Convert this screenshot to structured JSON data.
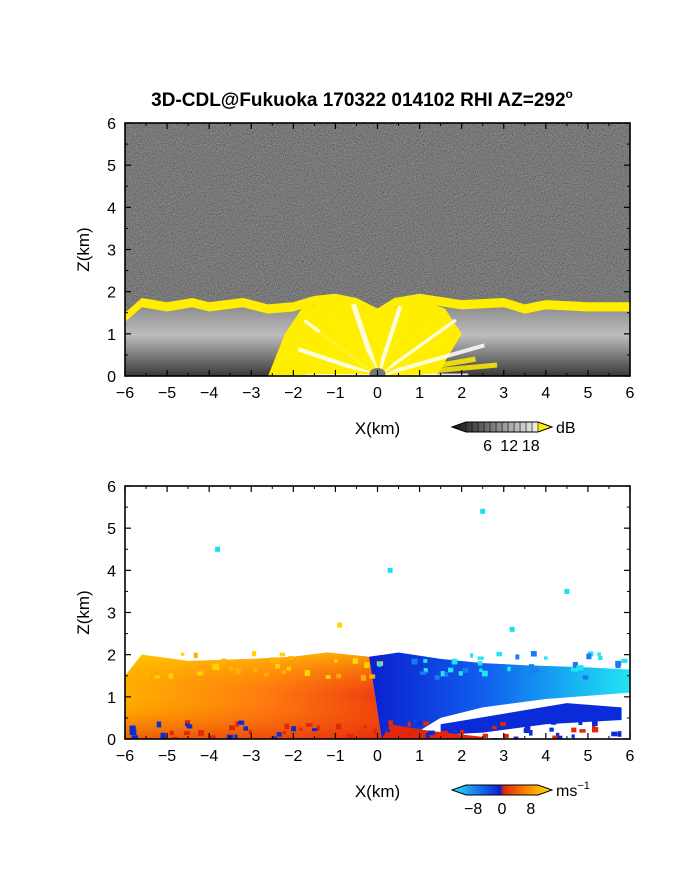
{
  "title": "3D-CDL@Fukuoka 170322 014102 RHI AZ=292",
  "title_degree": "o",
  "colors": {
    "echo_yellow": "#ffee00",
    "noise_dark": "#2b2b2b",
    "velocity_blue": "#0a2bd8",
    "velocity_cyan": "#19e0f0",
    "velocity_red": "#ee2a10",
    "velocity_orange": "#ff8a00",
    "velocity_yellow": "#ffd400"
  },
  "chart_data": [
    {
      "type": "heatmap",
      "panel": "snr",
      "xlabel": "X(km)",
      "ylabel": "Z(km)",
      "xlim": [
        -6,
        6
      ],
      "ylim": [
        0,
        6
      ],
      "xticks": [
        "−6",
        "−5",
        "−4",
        "−3",
        "−2",
        "−1",
        "0",
        "1",
        "2",
        "3",
        "4",
        "5",
        "6"
      ],
      "yticks": [
        "0",
        "1",
        "2",
        "3",
        "4",
        "5",
        "6"
      ],
      "echo_top_km": [
        [
          -6,
          1.5
        ],
        [
          -5.6,
          1.85
        ],
        [
          -5,
          1.75
        ],
        [
          -4.4,
          1.85
        ],
        [
          -4,
          1.75
        ],
        [
          -3.2,
          1.85
        ],
        [
          -2.6,
          1.7
        ],
        [
          -2,
          1.75
        ],
        [
          -1.5,
          1.9
        ],
        [
          -1,
          1.95
        ],
        [
          -0.5,
          1.85
        ],
        [
          0,
          1.6
        ],
        [
          0.4,
          1.85
        ],
        [
          1,
          1.95
        ],
        [
          2,
          1.8
        ],
        [
          3,
          1.85
        ],
        [
          3.5,
          1.7
        ],
        [
          4,
          1.8
        ],
        [
          5,
          1.75
        ],
        [
          6,
          1.75
        ]
      ],
      "colorbar": {
        "ticks": [
          "6",
          "12",
          "18"
        ],
        "values": [
          6,
          12,
          18
        ],
        "unit": "dB",
        "range": [
          0,
          20
        ]
      }
    },
    {
      "type": "heatmap",
      "panel": "doppler_velocity",
      "xlabel": "X(km)",
      "ylabel": "Z(km)",
      "xlim": [
        -6,
        6
      ],
      "ylim": [
        0,
        6
      ],
      "xticks": [
        "−6",
        "−5",
        "−4",
        "−3",
        "−2",
        "−1",
        "0",
        "1",
        "2",
        "3",
        "4",
        "5",
        "6"
      ],
      "yticks": [
        "0",
        "1",
        "2",
        "3",
        "4",
        "5",
        "6"
      ],
      "echo_top_km": [
        [
          -6,
          1.5
        ],
        [
          -5.6,
          2.0
        ],
        [
          -4.5,
          1.85
        ],
        [
          -3,
          1.9
        ],
        [
          -2,
          1.95
        ],
        [
          -1.2,
          2.05
        ],
        [
          -0.2,
          1.95
        ],
        [
          0.5,
          2.05
        ],
        [
          1.5,
          1.9
        ],
        [
          2.5,
          1.8
        ],
        [
          3.5,
          1.75
        ],
        [
          5,
          1.7
        ],
        [
          5.9,
          1.65
        ]
      ],
      "scatter_points_km": [
        [
          -3.8,
          4.5
        ],
        [
          2.5,
          5.4
        ],
        [
          0.3,
          4.0
        ],
        [
          4.5,
          3.5
        ],
        [
          3.2,
          2.6
        ],
        [
          -0.9,
          2.7
        ]
      ],
      "colorbar": {
        "ticks": [
          "−8",
          "0",
          "8"
        ],
        "values": [
          -8,
          0,
          8
        ],
        "unit": "ms",
        "unit_exponent": "−1",
        "range": [
          -10,
          10
        ]
      }
    }
  ]
}
